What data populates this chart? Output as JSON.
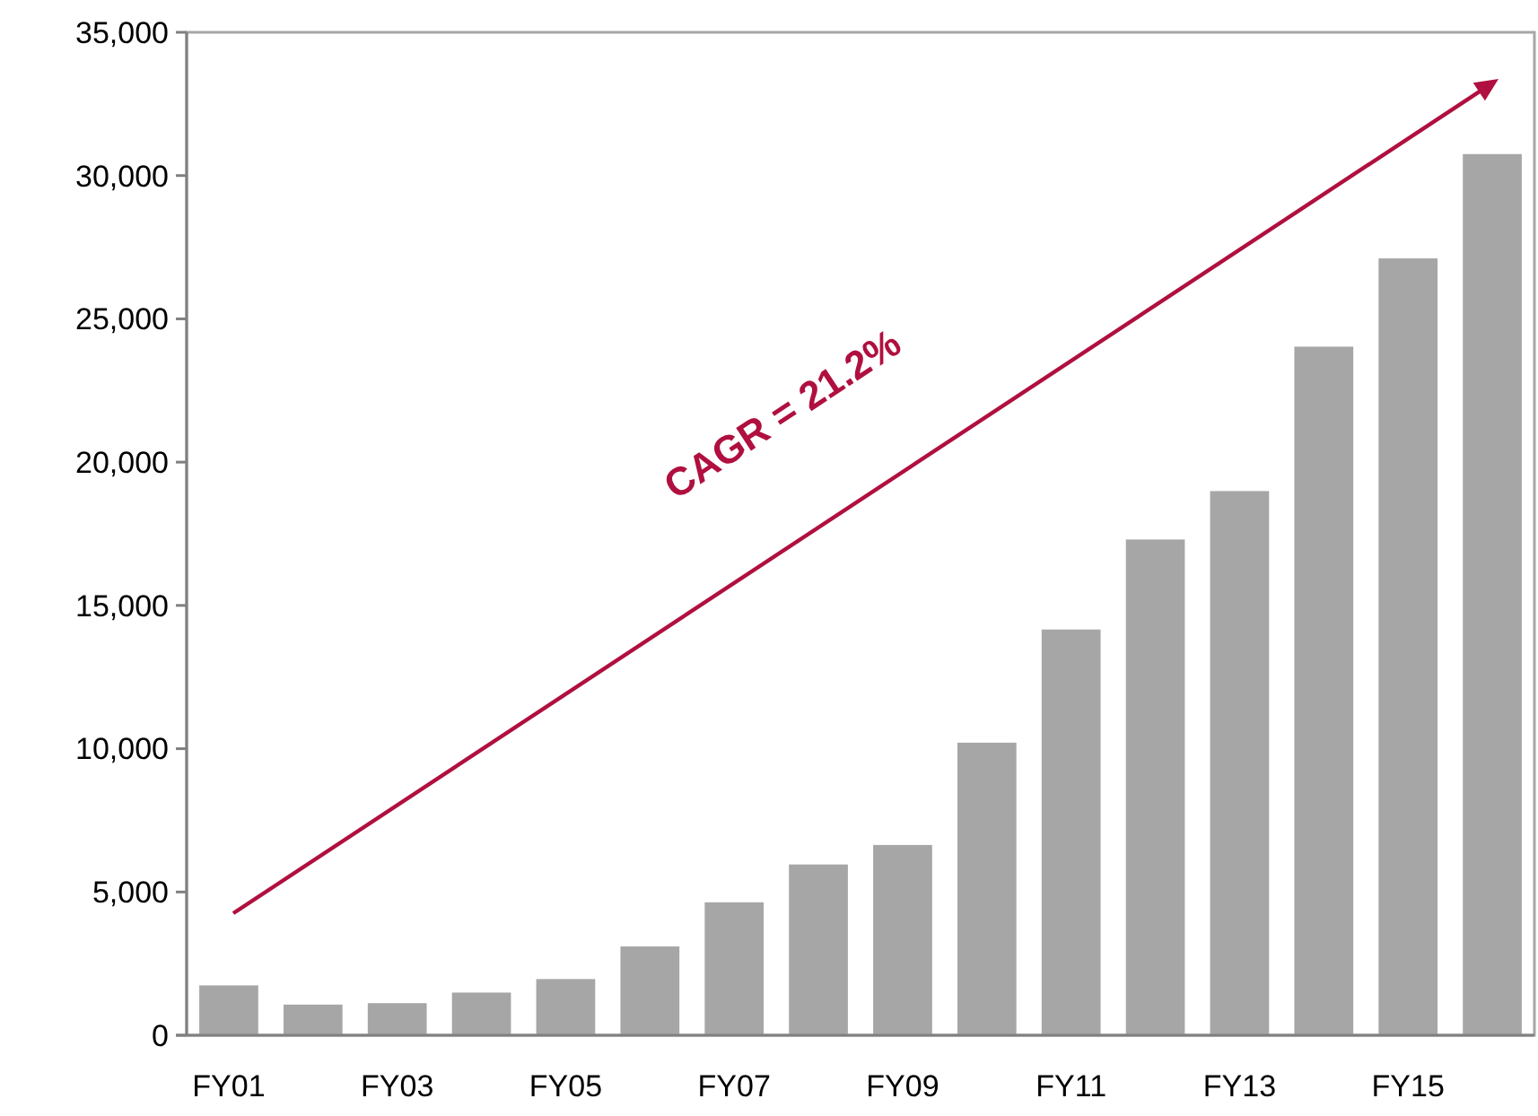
{
  "chart_data": {
    "type": "bar",
    "categories": [
      "FY01",
      null,
      "FY03",
      null,
      "FY05",
      null,
      "FY07",
      null,
      "FY09",
      null,
      "FY11",
      null,
      "FY13",
      null,
      "FY15",
      null
    ],
    "values": [
      1740,
      1070,
      1120,
      1490,
      1960,
      3100,
      4640,
      5960,
      6640,
      10210,
      14160,
      17300,
      18990,
      24030,
      27110,
      30750
    ],
    "color": "#a6a6a6",
    "ylim": [
      0,
      35000
    ],
    "yticks": [
      {
        "value": 0,
        "label": "0"
      },
      {
        "value": 5000,
        "label": "5,000"
      },
      {
        "value": 10000,
        "label": "10,000"
      },
      {
        "value": 15000,
        "label": "15,000"
      },
      {
        "value": 20000,
        "label": "20,000"
      },
      {
        "value": 25000,
        "label": "25,000"
      },
      {
        "value": 30000,
        "label": "30,000"
      },
      {
        "value": 35000,
        "label": "35,000"
      }
    ],
    "grid": false,
    "annotations": [
      "CAGR = 21.2%"
    ]
  }
}
